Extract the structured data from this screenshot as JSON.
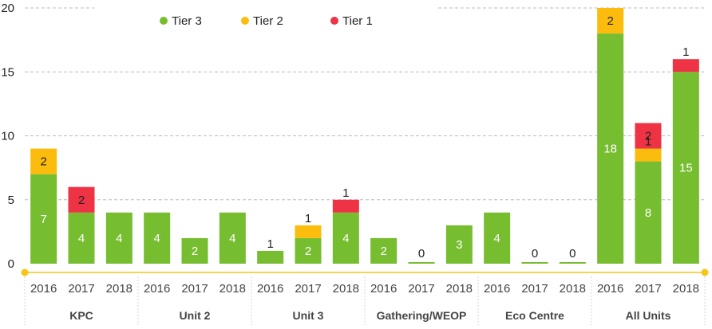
{
  "chart_data": {
    "type": "bar",
    "stacked": true,
    "groups": [
      "KPC",
      "Unit 2",
      "Unit 3",
      "Gathering/WEOP",
      "Eco Centre",
      "All Units"
    ],
    "years": [
      "2016",
      "2017",
      "2018"
    ],
    "series": [
      {
        "name": "Tier 3",
        "color": "#76bd30",
        "values": [
          7,
          4,
          4,
          4,
          2,
          4,
          1,
          2,
          4,
          2,
          0,
          3,
          4,
          0,
          0,
          18,
          8,
          15
        ]
      },
      {
        "name": "Tier 2",
        "color": "#fbbc0e",
        "values": [
          2,
          0,
          0,
          0,
          0,
          0,
          0,
          1,
          0,
          0,
          0,
          0,
          0,
          0,
          0,
          2,
          1,
          0
        ]
      },
      {
        "name": "Tier 1",
        "color": "#ee3344",
        "values": [
          0,
          2,
          0,
          0,
          0,
          0,
          0,
          0,
          1,
          0,
          0,
          0,
          0,
          0,
          0,
          0,
          2,
          1
        ]
      }
    ],
    "ylim": [
      0,
      20
    ],
    "yticks": [
      0,
      5,
      10,
      15,
      20
    ],
    "grid": true,
    "legend": "top-left"
  }
}
